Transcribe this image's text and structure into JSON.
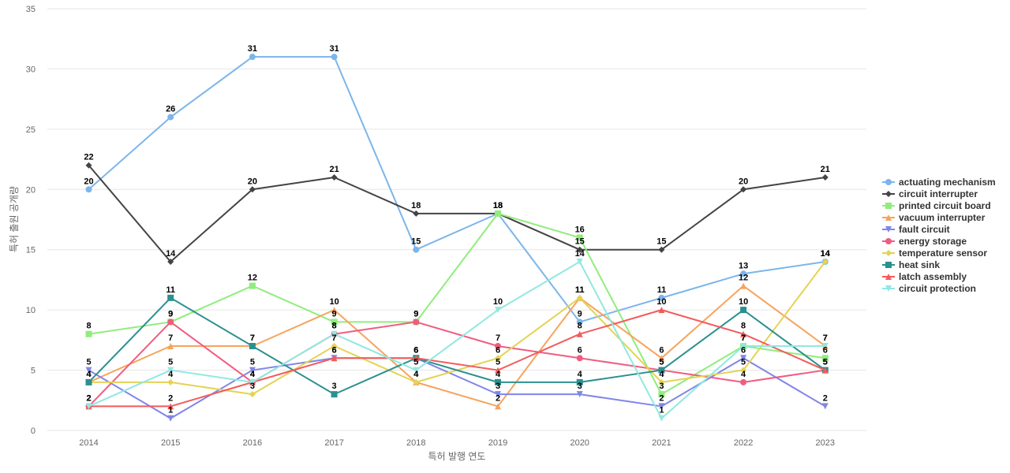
{
  "chart_data": {
    "type": "line",
    "title": "",
    "xlabel": "특허 발행 연도",
    "ylabel": "특허 출원 공개량",
    "ylim": [
      0,
      35
    ],
    "y_ticks": [
      0,
      5,
      10,
      15,
      20,
      25,
      30,
      35
    ],
    "grid": true,
    "legend_position": "right",
    "categories": [
      "2014",
      "2015",
      "2016",
      "2017",
      "2018",
      "2019",
      "2020",
      "2021",
      "2022",
      "2023"
    ],
    "series": [
      {
        "name": "actuating mechanism",
        "color": "#7cb5ec",
        "marker": "circle",
        "values": [
          20,
          26,
          31,
          31,
          15,
          18,
          9,
          11,
          13,
          14
        ]
      },
      {
        "name": "circuit interrupter",
        "color": "#434348",
        "marker": "diamond",
        "values": [
          22,
          14,
          20,
          21,
          18,
          18,
          15,
          15,
          20,
          21
        ]
      },
      {
        "name": "printed circuit board",
        "color": "#90ed7d",
        "marker": "square",
        "values": [
          8,
          9,
          12,
          9,
          9,
          18,
          16,
          3,
          7,
          6
        ]
      },
      {
        "name": "vacuum interrupter",
        "color": "#f7a35c",
        "marker": "triangle",
        "values": [
          4,
          7,
          7,
          10,
          4,
          2,
          11,
          6,
          12,
          7
        ]
      },
      {
        "name": "fault circuit",
        "color": "#8085e9",
        "marker": "triangle-down",
        "values": [
          5,
          1,
          5,
          6,
          6,
          3,
          3,
          2,
          6,
          2
        ]
      },
      {
        "name": "energy storage",
        "color": "#f15c80",
        "marker": "circle",
        "values": [
          2,
          9,
          4,
          8,
          9,
          7,
          6,
          5,
          4,
          5
        ]
      },
      {
        "name": "temperature sensor",
        "color": "#e4d354",
        "marker": "diamond",
        "values": [
          4,
          4,
          3,
          7,
          4,
          6,
          11,
          4,
          5,
          14
        ]
      },
      {
        "name": "heat sink",
        "color": "#2b908f",
        "marker": "square",
        "values": [
          4,
          11,
          7,
          3,
          6,
          4,
          4,
          5,
          10,
          5
        ]
      },
      {
        "name": "latch assembly",
        "color": "#f45b5b",
        "marker": "triangle",
        "values": [
          2,
          2,
          4,
          6,
          6,
          5,
          8,
          10,
          8,
          5
        ]
      },
      {
        "name": "circuit protection",
        "color": "#91e8e1",
        "marker": "triangle-down",
        "values": [
          2,
          5,
          4,
          8,
          5,
          10,
          14,
          1,
          7,
          7
        ]
      }
    ]
  }
}
